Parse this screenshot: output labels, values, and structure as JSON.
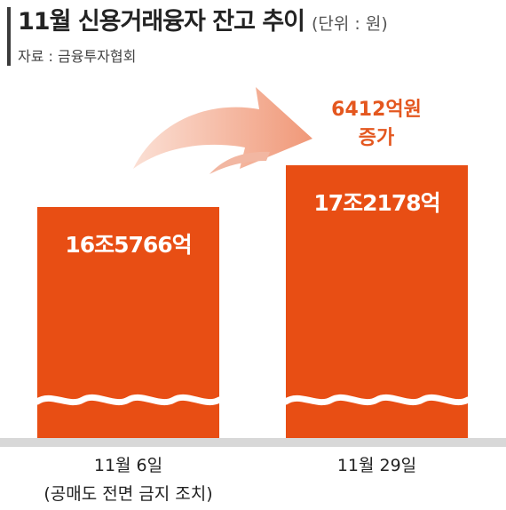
{
  "header": {
    "title": "11월 신용거래융자 잔고 추이",
    "unit": "(단위 : 원)",
    "source": "자료 : 금융투자협회"
  },
  "chart_data": {
    "type": "bar",
    "categories": [
      "11월 6일",
      "11월 29일"
    ],
    "category_notes": [
      "(공매도 전면 금지 조치)",
      ""
    ],
    "values": [
      165766,
      172178
    ],
    "value_unit": "억원",
    "data_labels": [
      "16조5766억",
      "17조2178억"
    ],
    "annotation": {
      "line1": "6412억원",
      "line2": "증가"
    },
    "axis_break": true,
    "bar_color": "#e84e14",
    "arrow_color": "#f4a48a"
  }
}
